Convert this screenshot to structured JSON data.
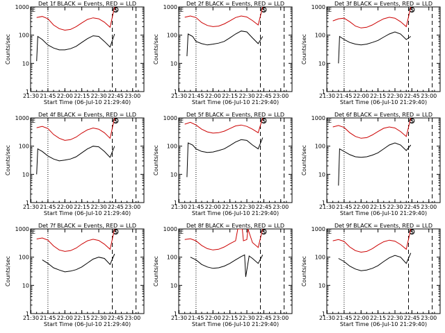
{
  "colors": {
    "events": "#000000",
    "lld": "#cc0000",
    "axis": "#000000"
  },
  "common": {
    "xlabel": "Start Time (06-Jul-10 21:29:40)",
    "ylabel": "Counts/sec",
    "x_tick_labels": [
      "21:30",
      "21:45",
      "22:00",
      "22:15",
      "22:30",
      "22:45",
      "23:00"
    ],
    "y_tick_labels": [
      "1",
      "10",
      "100",
      "1000"
    ],
    "corner_marks": [
      "E",
      "S"
    ]
  },
  "chart_data": [
    {
      "type": "line",
      "title": "Det 1f BLACK = Events, RED = LLD",
      "yscale": "log",
      "xlim": [
        "21:29:40",
        "23:10"
      ],
      "ylim": [
        1,
        1000
      ],
      "vlines": [
        {
          "t": "21:45",
          "style": "dotted"
        },
        {
          "t": "22:42",
          "style": "dashed"
        },
        {
          "t": "23:03",
          "style": "dashed"
        }
      ],
      "series": [
        {
          "t": [
            "21:35",
            "21:40",
            "21:45",
            "21:50",
            "21:55",
            "22:00",
            "22:05",
            "22:10",
            "22:15",
            "22:20",
            "22:25",
            "22:30",
            "22:35",
            "22:40",
            "22:44"
          ],
          "y": [
            420,
            460,
            380,
            230,
            170,
            150,
            160,
            200,
            270,
            360,
            410,
            380,
            290,
            190,
            1000
          ]
        },
        {
          "t": [
            "21:35",
            "21:36",
            "21:40",
            "21:45",
            "21:50",
            "21:55",
            "22:00",
            "22:05",
            "22:10",
            "22:15",
            "22:20",
            "22:25",
            "22:30",
            "22:35",
            "22:40",
            "22:44"
          ],
          "y": [
            12,
            90,
            70,
            45,
            35,
            30,
            30,
            33,
            40,
            55,
            75,
            95,
            90,
            60,
            38,
            110
          ]
        }
      ]
    },
    {
      "type": "line",
      "title": "Det 2f BLACK = Events, RED = LLD",
      "yscale": "log",
      "xlim": [
        "21:29:40",
        "23:10"
      ],
      "ylim": [
        1,
        1000
      ],
      "vlines": [
        {
          "t": "21:45",
          "style": "dotted"
        },
        {
          "t": "22:42",
          "style": "dashed"
        },
        {
          "t": "23:03",
          "style": "dashed"
        }
      ],
      "series": [
        {
          "t": [
            "21:35",
            "21:40",
            "21:45",
            "21:50",
            "21:55",
            "22:00",
            "22:05",
            "22:10",
            "22:15",
            "22:20",
            "22:25",
            "22:30",
            "22:35",
            "22:40",
            "22:44"
          ],
          "y": [
            430,
            480,
            420,
            280,
            220,
            200,
            210,
            250,
            320,
            420,
            480,
            440,
            330,
            230,
            1000
          ]
        },
        {
          "t": [
            "21:37",
            "21:38",
            "21:42",
            "21:45",
            "21:50",
            "21:55",
            "22:00",
            "22:05",
            "22:10",
            "22:15",
            "22:20",
            "22:25",
            "22:30",
            "22:35",
            "22:40",
            "22:44"
          ],
          "y": [
            18,
            110,
            90,
            60,
            50,
            45,
            48,
            52,
            60,
            80,
            110,
            140,
            130,
            80,
            50,
            90
          ]
        }
      ]
    },
    {
      "type": "line",
      "title": "Det 3f BLACK = Events, RED = LLD",
      "yscale": "log",
      "xlim": [
        "21:29:40",
        "23:10"
      ],
      "ylim": [
        1,
        1000
      ],
      "vlines": [
        {
          "t": "21:45",
          "style": "dotted"
        },
        {
          "t": "22:42",
          "style": "dashed"
        },
        {
          "t": "23:03",
          "style": "dashed"
        }
      ],
      "series": [
        {
          "t": [
            "21:35",
            "21:40",
            "21:45",
            "21:50",
            "21:55",
            "22:00",
            "22:05",
            "22:10",
            "22:15",
            "22:20",
            "22:25",
            "22:30",
            "22:35",
            "22:40",
            "22:44"
          ],
          "y": [
            320,
            380,
            400,
            300,
            210,
            180,
            190,
            230,
            300,
            380,
            430,
            400,
            300,
            200,
            1000
          ]
        },
        {
          "t": [
            "21:40",
            "21:41",
            "21:45",
            "21:50",
            "21:55",
            "22:00",
            "22:05",
            "22:10",
            "22:15",
            "22:20",
            "22:25",
            "22:30",
            "22:35",
            "22:40",
            "22:44"
          ],
          "y": [
            10,
            90,
            70,
            55,
            48,
            45,
            48,
            55,
            65,
            85,
            110,
            130,
            110,
            70,
            90
          ]
        }
      ]
    },
    {
      "type": "line",
      "title": "Det 4f BLACK = Events, RED = LLD",
      "yscale": "log",
      "xlim": [
        "21:29:40",
        "23:10"
      ],
      "ylim": [
        1,
        1000
      ],
      "vlines": [
        {
          "t": "21:45",
          "style": "dotted"
        },
        {
          "t": "22:42",
          "style": "dashed"
        },
        {
          "t": "23:03",
          "style": "dashed"
        }
      ],
      "series": [
        {
          "t": [
            "21:35",
            "21:40",
            "21:45",
            "21:50",
            "21:55",
            "22:00",
            "22:05",
            "22:10",
            "22:15",
            "22:20",
            "22:25",
            "22:30",
            "22:35",
            "22:40",
            "22:44"
          ],
          "y": [
            450,
            500,
            420,
            260,
            190,
            160,
            170,
            210,
            290,
            380,
            440,
            400,
            300,
            190,
            1000
          ]
        },
        {
          "t": [
            "21:35",
            "21:36",
            "21:40",
            "21:45",
            "21:50",
            "21:55",
            "22:00",
            "22:05",
            "22:10",
            "22:15",
            "22:20",
            "22:25",
            "22:30",
            "22:35",
            "22:40",
            "22:44"
          ],
          "y": [
            10,
            80,
            65,
            45,
            35,
            30,
            32,
            35,
            42,
            58,
            80,
            100,
            95,
            65,
            40,
            100
          ]
        }
      ]
    },
    {
      "type": "line",
      "title": "Det 5f BLACK = Events, RED = LLD",
      "yscale": "log",
      "xlim": [
        "21:29:40",
        "23:10"
      ],
      "ylim": [
        1,
        1000
      ],
      "vlines": [
        {
          "t": "21:45",
          "style": "dotted"
        },
        {
          "t": "22:42",
          "style": "dashed"
        },
        {
          "t": "23:03",
          "style": "dashed"
        }
      ],
      "series": [
        {
          "t": [
            "21:35",
            "21:40",
            "21:45",
            "21:50",
            "21:55",
            "22:00",
            "22:05",
            "22:10",
            "22:15",
            "22:20",
            "22:25",
            "22:30",
            "22:35",
            "22:40",
            "22:44"
          ],
          "y": [
            600,
            700,
            560,
            400,
            320,
            290,
            300,
            340,
            420,
            520,
            560,
            500,
            400,
            300,
            1000
          ]
        },
        {
          "t": [
            "21:37",
            "21:38",
            "21:42",
            "21:45",
            "21:50",
            "21:55",
            "22:00",
            "22:05",
            "22:10",
            "22:15",
            "22:20",
            "22:25",
            "22:30",
            "22:35",
            "22:40",
            "22:44"
          ],
          "y": [
            8,
            130,
            110,
            80,
            65,
            60,
            62,
            70,
            80,
            105,
            140,
            170,
            160,
            110,
            80,
            200
          ]
        }
      ]
    },
    {
      "type": "line",
      "title": "Det 6f BLACK = Events, RED = LLD",
      "yscale": "log",
      "xlim": [
        "21:29:40",
        "23:10"
      ],
      "ylim": [
        1,
        1000
      ],
      "vlines": [
        {
          "t": "21:45",
          "style": "dotted"
        },
        {
          "t": "22:42",
          "style": "dashed"
        },
        {
          "t": "23:03",
          "style": "dashed"
        }
      ],
      "series": [
        {
          "t": [
            "21:35",
            "21:40",
            "21:45",
            "21:50",
            "21:55",
            "22:00",
            "22:05",
            "22:10",
            "22:15",
            "22:20",
            "22:25",
            "22:30",
            "22:35",
            "22:40",
            "22:44"
          ],
          "y": [
            480,
            540,
            460,
            300,
            220,
            190,
            200,
            250,
            330,
            430,
            480,
            440,
            330,
            220,
            1000
          ]
        },
        {
          "t": [
            "21:40",
            "21:41",
            "21:45",
            "21:50",
            "21:55",
            "22:00",
            "22:05",
            "22:10",
            "22:15",
            "22:20",
            "22:25",
            "22:30",
            "22:35",
            "22:40",
            "22:44"
          ],
          "y": [
            4,
            80,
            65,
            50,
            42,
            40,
            42,
            48,
            58,
            80,
            110,
            130,
            110,
            70,
            110
          ]
        }
      ]
    },
    {
      "type": "line",
      "title": "Det 7f BLACK = Events, RED = LLD",
      "yscale": "log",
      "xlim": [
        "21:29:40",
        "23:10"
      ],
      "ylim": [
        1,
        1000
      ],
      "vlines": [
        {
          "t": "21:45",
          "style": "dotted"
        },
        {
          "t": "22:42",
          "style": "dashed"
        },
        {
          "t": "23:03",
          "style": "dashed"
        }
      ],
      "series": [
        {
          "t": [
            "21:35",
            "21:40",
            "21:45",
            "21:50",
            "21:55",
            "22:00",
            "22:05",
            "22:10",
            "22:15",
            "22:20",
            "22:25",
            "22:30",
            "22:35",
            "22:40",
            "22:44"
          ],
          "y": [
            440,
            480,
            400,
            250,
            180,
            160,
            170,
            210,
            290,
            380,
            430,
            390,
            290,
            190,
            1000
          ]
        },
        {
          "t": [
            "21:40",
            "21:45",
            "21:50",
            "21:55",
            "22:00",
            "22:05",
            "22:10",
            "22:15",
            "22:20",
            "22:25",
            "22:30",
            "22:35",
            "22:40",
            "22:44"
          ],
          "y": [
            80,
            60,
            42,
            35,
            30,
            32,
            36,
            45,
            62,
            85,
            100,
            90,
            55,
            130
          ]
        }
      ]
    },
    {
      "type": "line",
      "title": "Det 8f BLACK = Events, RED = LLD",
      "yscale": "log",
      "xlim": [
        "21:29:40",
        "23:10"
      ],
      "ylim": [
        1,
        1000
      ],
      "vlines": [
        {
          "t": "21:45",
          "style": "dotted"
        },
        {
          "t": "22:42",
          "style": "dashed"
        },
        {
          "t": "23:03",
          "style": "dashed"
        }
      ],
      "series": [
        {
          "t": [
            "21:35",
            "21:40",
            "21:45",
            "21:50",
            "21:55",
            "22:00",
            "22:05",
            "22:10",
            "22:15",
            "22:20",
            "22:22",
            "22:23",
            "22:26",
            "22:27",
            "22:30",
            "22:31",
            "22:35",
            "22:40",
            "22:44"
          ],
          "y": [
            420,
            450,
            380,
            260,
            200,
            180,
            190,
            230,
            300,
            380,
            1000,
            1000,
            1000,
            380,
            420,
            1000,
            330,
            220,
            1000
          ]
        },
        {
          "t": [
            "21:40",
            "21:45",
            "21:50",
            "21:55",
            "22:00",
            "22:05",
            "22:10",
            "22:15",
            "22:20",
            "22:25",
            "22:28",
            "22:29",
            "22:32",
            "22:35",
            "22:40",
            "22:44"
          ],
          "y": [
            100,
            80,
            55,
            45,
            40,
            42,
            48,
            60,
            80,
            105,
            120,
            20,
            110,
            90,
            60,
            120
          ]
        }
      ]
    },
    {
      "type": "line",
      "title": "Det 9f BLACK = Events, RED = LLD",
      "yscale": "log",
      "xlim": [
        "21:29:40",
        "23:10"
      ],
      "ylim": [
        1,
        1000
      ],
      "vlines": [
        {
          "t": "21:45",
          "style": "dotted"
        },
        {
          "t": "22:42",
          "style": "dashed"
        },
        {
          "t": "23:03",
          "style": "dashed"
        }
      ],
      "series": [
        {
          "t": [
            "21:35",
            "21:40",
            "21:45",
            "21:50",
            "21:55",
            "22:00",
            "22:05",
            "22:10",
            "22:15",
            "22:20",
            "22:25",
            "22:30",
            "22:35",
            "22:40",
            "22:44"
          ],
          "y": [
            380,
            420,
            360,
            230,
            170,
            150,
            160,
            200,
            270,
            350,
            400,
            370,
            280,
            190,
            1000
          ]
        },
        {
          "t": [
            "21:40",
            "21:45",
            "21:50",
            "21:55",
            "22:00",
            "22:05",
            "22:10",
            "22:15",
            "22:20",
            "22:25",
            "22:30",
            "22:35",
            "22:40",
            "22:44"
          ],
          "y": [
            90,
            70,
            48,
            38,
            33,
            35,
            40,
            50,
            70,
            95,
            115,
            100,
            60,
            140
          ]
        }
      ]
    }
  ]
}
